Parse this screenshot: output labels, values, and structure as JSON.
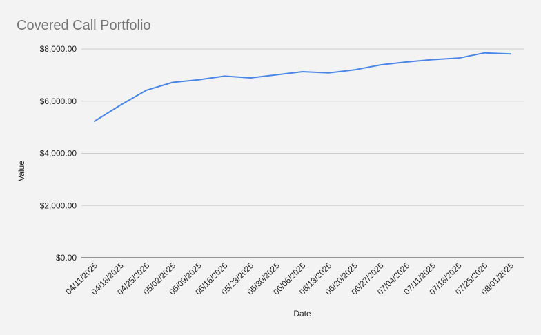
{
  "chart_data": {
    "type": "line",
    "title": "Covered Call Portfolio",
    "xlabel": "Date",
    "ylabel": "Value",
    "ylim": [
      0,
      8000
    ],
    "y_ticks": [
      0,
      2000,
      4000,
      6000,
      8000
    ],
    "y_tick_labels": [
      "$0.00",
      "$2,000.00",
      "$4,000.00",
      "$6,000.00",
      "$8,000.00"
    ],
    "grid": true,
    "legend": "none",
    "colors": {
      "line": "#4a86e8",
      "background": "#f3f3f3",
      "grid": "#cccccc"
    },
    "categories": [
      "04/11/2025",
      "04/18/2025",
      "04/25/2025",
      "05/02/2025",
      "05/09/2025",
      "05/16/2025",
      "05/23/2025",
      "05/30/2025",
      "06/06/2025",
      "06/13/2025",
      "06/20/2025",
      "06/27/2025",
      "07/04/2025",
      "07/11/2025",
      "07/18/2025",
      "07/25/2025",
      "08/01/2025"
    ],
    "series": [
      {
        "values": [
          5230,
          5850,
          6420,
          6720,
          6820,
          6960,
          6890,
          7010,
          7130,
          7080,
          7200,
          7390,
          7500,
          7590,
          7650,
          7850,
          7810
        ]
      }
    ]
  }
}
